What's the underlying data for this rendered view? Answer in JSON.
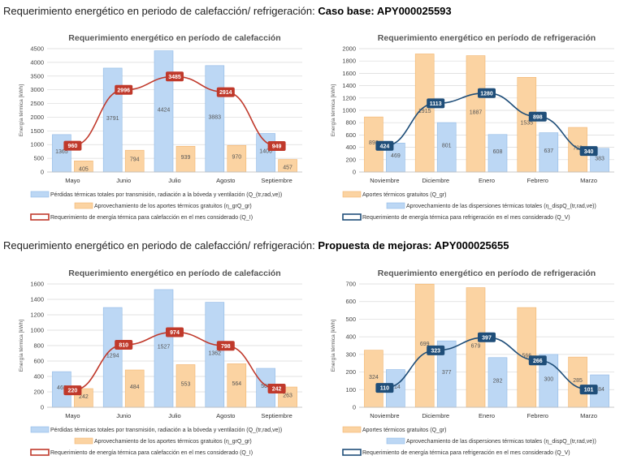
{
  "sections": [
    {
      "prefix": "Requerimiento energético en periodo de calefacción/ refrigeración: ",
      "bold": "Caso base: APY000025593"
    },
    {
      "prefix": "Requerimiento energético en periodo de calefacción/ refrigeración: ",
      "bold": "Propuesta de mejoras:  APY000025655"
    }
  ],
  "colors": {
    "blue_fill": "#bcd7f4",
    "blue_edge": "#8fb8e6",
    "orange_fill": "#fbd3a2",
    "orange_edge": "#f2b46e",
    "red": "#c0392b",
    "navy": "#1f4e79"
  },
  "chart_data": [
    {
      "type": "bar",
      "title": "Requerimiento energético en período de calefacción",
      "ylabel": "Energía térmica [kWh]",
      "ylim": [
        0,
        4500
      ],
      "yticks": [
        0,
        500,
        1000,
        1500,
        2000,
        2500,
        3000,
        3500,
        4000,
        4500
      ],
      "categories": [
        "Mayo",
        "Junio",
        "Julio",
        "Agosto",
        "Septiembre"
      ],
      "grid": true,
      "series": [
        {
          "name": "Pérdidas térmicas totales por transmisión, radiación a la bóveda y ventilación (Q_(tr,rad,ve))",
          "kind": "bar",
          "color": "blue",
          "values": [
            1365,
            3791,
            4424,
            3883,
            1406
          ]
        },
        {
          "name": "Aprovechamiento de los aportes térmicos gratuitos (η_grQ_gr)",
          "kind": "bar",
          "color": "orange",
          "values": [
            405,
            794,
            939,
            970,
            457
          ]
        },
        {
          "name": "Requerimiento de energía térmica para calefacción en el mes considerado (Q_I)",
          "kind": "line",
          "color": "red",
          "values": [
            960,
            2996,
            3485,
            2914,
            949
          ]
        }
      ]
    },
    {
      "type": "bar",
      "title": "Requerimiento energético en período de refrigeración",
      "ylabel": "Energía térmica [kWh]",
      "ylim": [
        0,
        2000
      ],
      "yticks": [
        0,
        200,
        400,
        600,
        800,
        1000,
        1200,
        1400,
        1600,
        1800,
        2000
      ],
      "categories": [
        "Noviembre",
        "Diciembre",
        "Enero",
        "Febrero",
        "Marzo"
      ],
      "grid": true,
      "series": [
        {
          "name": "Aportes térmicos gratuitos (Q_gr)",
          "kind": "bar",
          "color": "orange",
          "values": [
            893,
            1915,
            1887,
            1535,
            723
          ]
        },
        {
          "name": "Aprovechamiento de las dispersiones térmicas totales (η_dispQ_(tr,rad,ve))",
          "kind": "bar",
          "color": "blue",
          "values": [
            469,
            801,
            608,
            637,
            383
          ]
        },
        {
          "name": "Requerimiento de energía térmica para refrigeración en el mes considerado (Q_V)",
          "kind": "line",
          "color": "navy",
          "values": [
            424,
            1113,
            1280,
            898,
            340
          ]
        }
      ]
    },
    {
      "type": "bar",
      "title": "Requerimiento energético en período de calefacción",
      "ylabel": "Energía térmica [kWh]",
      "ylim": [
        0,
        1600
      ],
      "yticks": [
        0,
        200,
        400,
        600,
        800,
        1000,
        1200,
        1400,
        1600
      ],
      "categories": [
        "Mayo",
        "Junio",
        "Julio",
        "Agosto",
        "Septiembre"
      ],
      "grid": true,
      "series": [
        {
          "name": "Pérdidas térmicas totales por transmisión, radiación a la bóveda y ventilación (Q_(tr,rad,ve))",
          "kind": "bar",
          "color": "blue",
          "values": [
            462,
            1294,
            1527,
            1362,
            505
          ]
        },
        {
          "name": "Aprovechamiento de los aportes térmicos gratuitos (η_grQ_gr)",
          "kind": "bar",
          "color": "orange",
          "values": [
            242,
            484,
            553,
            564,
            263
          ]
        },
        {
          "name": "Requerimiento de energía térmica para calefacción en el mes considerado (Q_I)",
          "kind": "line",
          "color": "red",
          "values": [
            220,
            810,
            974,
            798,
            242
          ]
        }
      ]
    },
    {
      "type": "bar",
      "title": "Requerimiento energético en período de refrigeración",
      "ylabel": "Energía térmica [kWh]",
      "ylim": [
        0,
        700
      ],
      "yticks": [
        0,
        100,
        200,
        300,
        400,
        500,
        600,
        700
      ],
      "categories": [
        "Noviembre",
        "Diciembre",
        "Enero",
        "Febrero",
        "Marzo"
      ],
      "grid": true,
      "series": [
        {
          "name": "Aportes térmicos gratuitos (Q_gr)",
          "kind": "bar",
          "color": "orange",
          "values": [
            324,
            699,
            679,
            566,
            285
          ]
        },
        {
          "name": "Aprovechamiento de las dispersiones térmicas totales (η_dispQ_(tr,rad,ve))",
          "kind": "bar",
          "color": "blue",
          "values": [
            214,
            377,
            282,
            300,
            184
          ]
        },
        {
          "name": "Requerimiento de energía térmica para refrigeración en el mes considerado (Q_V)",
          "kind": "line",
          "color": "navy",
          "values": [
            110,
            323,
            397,
            266,
            101
          ]
        }
      ]
    }
  ]
}
